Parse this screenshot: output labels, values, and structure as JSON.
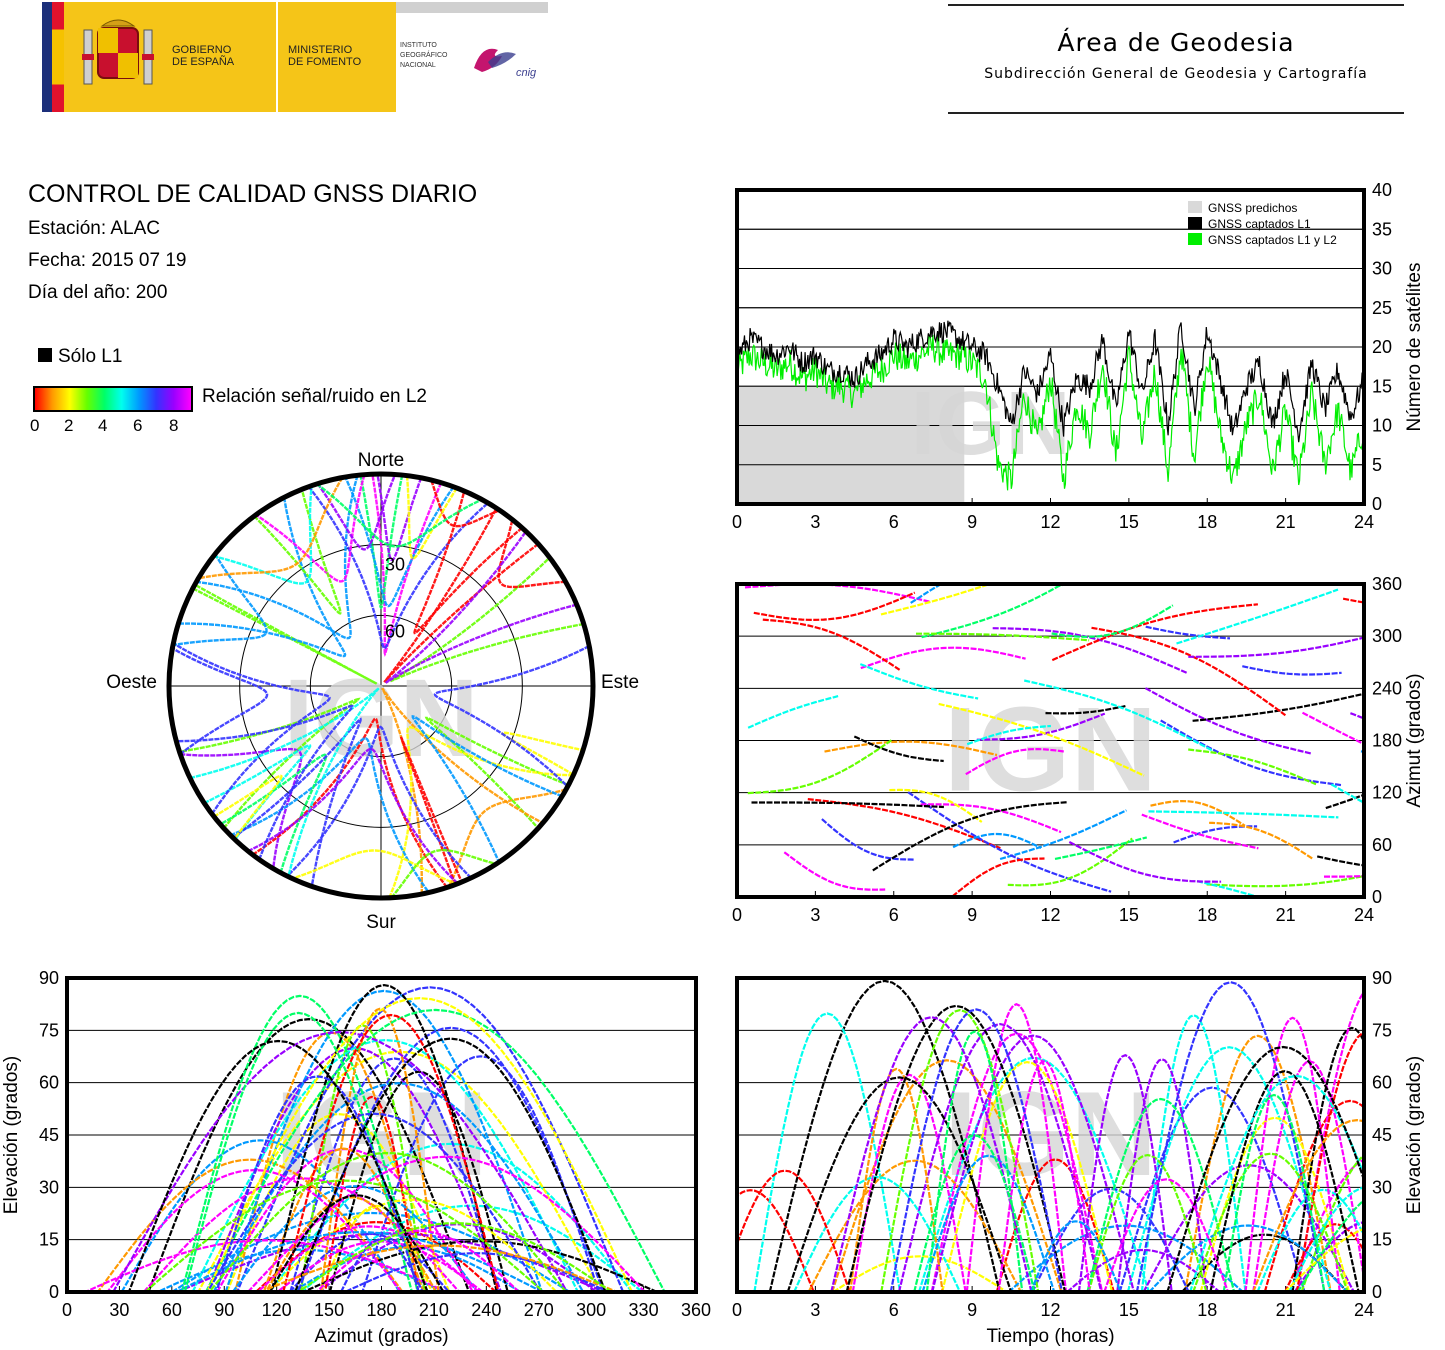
{
  "header": {
    "gov_line1": "GOBIERNO",
    "gov_line2": "DE ESPAÑA",
    "ministry_line1": "MINISTERIO",
    "ministry_line2": "DE FOMENTO",
    "ign_line1": "INSTITUTO",
    "ign_line2": "GEOGRÁFICO",
    "ign_line3": "NACIONAL",
    "cnig": "cnig",
    "area_title": "Área de Geodesia",
    "area_subtitle": "Subdirección General de Geodesia y Cartografía"
  },
  "info": {
    "title": "CONTROL DE CALIDAD GNSS DIARIO",
    "station": "Estación: ALAC",
    "date": "Fecha: 2015 07 19",
    "doy": "Día del año: 200",
    "legend_l1": "Sólo L1",
    "snr_label": "Relación señal/ruido en L2",
    "snr_ticks": [
      "0",
      "2",
      "4",
      "6",
      "8"
    ]
  },
  "colors": {
    "predicted": "#d9d9d9",
    "captured_l1": "#000000",
    "captured_l1l2": "#00ee00",
    "snr_scale": [
      "#ff0000",
      "#ff9900",
      "#ffff00",
      "#66ff00",
      "#00ff66",
      "#00ffee",
      "#0099ff",
      "#3333ff",
      "#9900ff",
      "#ff00ff"
    ]
  },
  "watermark": "IGN",
  "chart_data": [
    {
      "id": "satellites",
      "type": "area",
      "ylabel": "Número de satélites",
      "x_ticks": [
        "0",
        "3",
        "6",
        "9",
        "12",
        "15",
        "18",
        "21",
        "24"
      ],
      "y_ticks": [
        "0",
        "5",
        "10",
        "15",
        "20",
        "25",
        "30",
        "35",
        "40"
      ],
      "xlim": [
        0,
        24
      ],
      "ylim": [
        0,
        40
      ],
      "legend": [
        "GNSS predichos",
        "GNSS captados L1",
        "GNSS captados L1 y L2"
      ],
      "legend_position": "top-right",
      "series": [
        {
          "name": "GNSS predichos",
          "x": [
            0,
            8.7,
            8.7,
            24
          ],
          "values": [
            15,
            15,
            0,
            0
          ]
        },
        {
          "name": "GNSS captados L1",
          "x": [
            0,
            0.5,
            1,
            1.5,
            2,
            2.5,
            3,
            3.5,
            4,
            4.5,
            5,
            5.5,
            6,
            6.5,
            7,
            7.5,
            8,
            8.5,
            9,
            9.5,
            10,
            10.5,
            11,
            11.5,
            12,
            12.5,
            13,
            13.5,
            14,
            14.5,
            15,
            15.5,
            16,
            16.5,
            17,
            17.5,
            18,
            18.5,
            19,
            19.5,
            20,
            20.5,
            21,
            21.5,
            22,
            22.5,
            23,
            23.5,
            24
          ],
          "values": [
            19,
            21,
            20,
            19,
            20,
            18,
            19,
            17,
            17,
            16,
            18,
            19,
            21,
            20,
            21,
            22,
            22,
            21,
            20,
            19,
            15,
            10,
            17,
            14,
            19,
            10,
            16,
            15,
            21,
            12,
            22,
            14,
            21,
            10,
            23,
            12,
            22,
            16,
            9,
            15,
            18,
            10,
            17,
            9,
            18,
            12,
            17,
            11,
            16
          ]
        },
        {
          "name": "GNSS captados L1 y L2",
          "x": [
            0,
            0.5,
            1,
            1.5,
            2,
            2.5,
            3,
            3.5,
            4,
            4.5,
            5,
            5.5,
            6,
            6.5,
            7,
            7.5,
            8,
            8.5,
            9,
            9.5,
            10,
            10.5,
            11,
            11.5,
            12,
            12.5,
            13,
            13.5,
            14,
            14.5,
            15,
            15.5,
            16,
            16.5,
            17,
            17.5,
            18,
            18.5,
            19,
            19.5,
            20,
            20.5,
            21,
            21.5,
            22,
            22.5,
            23,
            23.5,
            24
          ],
          "values": [
            17,
            19,
            18,
            17,
            18,
            16,
            17,
            15,
            15,
            14,
            16,
            17,
            19,
            18,
            19,
            20,
            19,
            19,
            18,
            16,
            5,
            3,
            14,
            8,
            16,
            3,
            13,
            9,
            18,
            6,
            19,
            8,
            17,
            4,
            20,
            6,
            19,
            9,
            3,
            10,
            14,
            4,
            12,
            3,
            14,
            5,
            12,
            4,
            10
          ]
        }
      ]
    },
    {
      "id": "skyplot",
      "type": "scatter",
      "ring_labels": [
        "30",
        "60"
      ],
      "directions": {
        "north": "Norte",
        "south": "Sur",
        "east": "Este",
        "west": "Oeste"
      }
    },
    {
      "id": "azimuth_time",
      "type": "scatter",
      "ylabel": "Azimut (grados)",
      "x_ticks": [
        "0",
        "3",
        "6",
        "9",
        "12",
        "15",
        "18",
        "21",
        "24"
      ],
      "y_ticks": [
        "0",
        "60",
        "120",
        "180",
        "240",
        "300",
        "360"
      ],
      "xlim": [
        0,
        24
      ],
      "ylim": [
        0,
        360
      ]
    },
    {
      "id": "elevation_azimuth",
      "type": "scatter",
      "xlabel": "Azimut (grados)",
      "ylabel": "Elevación (grados)",
      "x_ticks": [
        "0",
        "30",
        "60",
        "90",
        "120",
        "150",
        "180",
        "210",
        "240",
        "270",
        "300",
        "330",
        "360"
      ],
      "y_ticks": [
        "0",
        "15",
        "30",
        "45",
        "60",
        "75",
        "90"
      ],
      "xlim": [
        0,
        360
      ],
      "ylim": [
        0,
        90
      ]
    },
    {
      "id": "elevation_time",
      "type": "scatter",
      "xlabel": "Tiempo (horas)",
      "ylabel": "Elevación (grados)",
      "x_ticks": [
        "0",
        "3",
        "6",
        "9",
        "12",
        "15",
        "18",
        "21",
        "24"
      ],
      "y_ticks": [
        "0",
        "15",
        "30",
        "45",
        "60",
        "75",
        "90"
      ],
      "xlim": [
        0,
        24
      ],
      "ylim": [
        0,
        90
      ]
    }
  ]
}
